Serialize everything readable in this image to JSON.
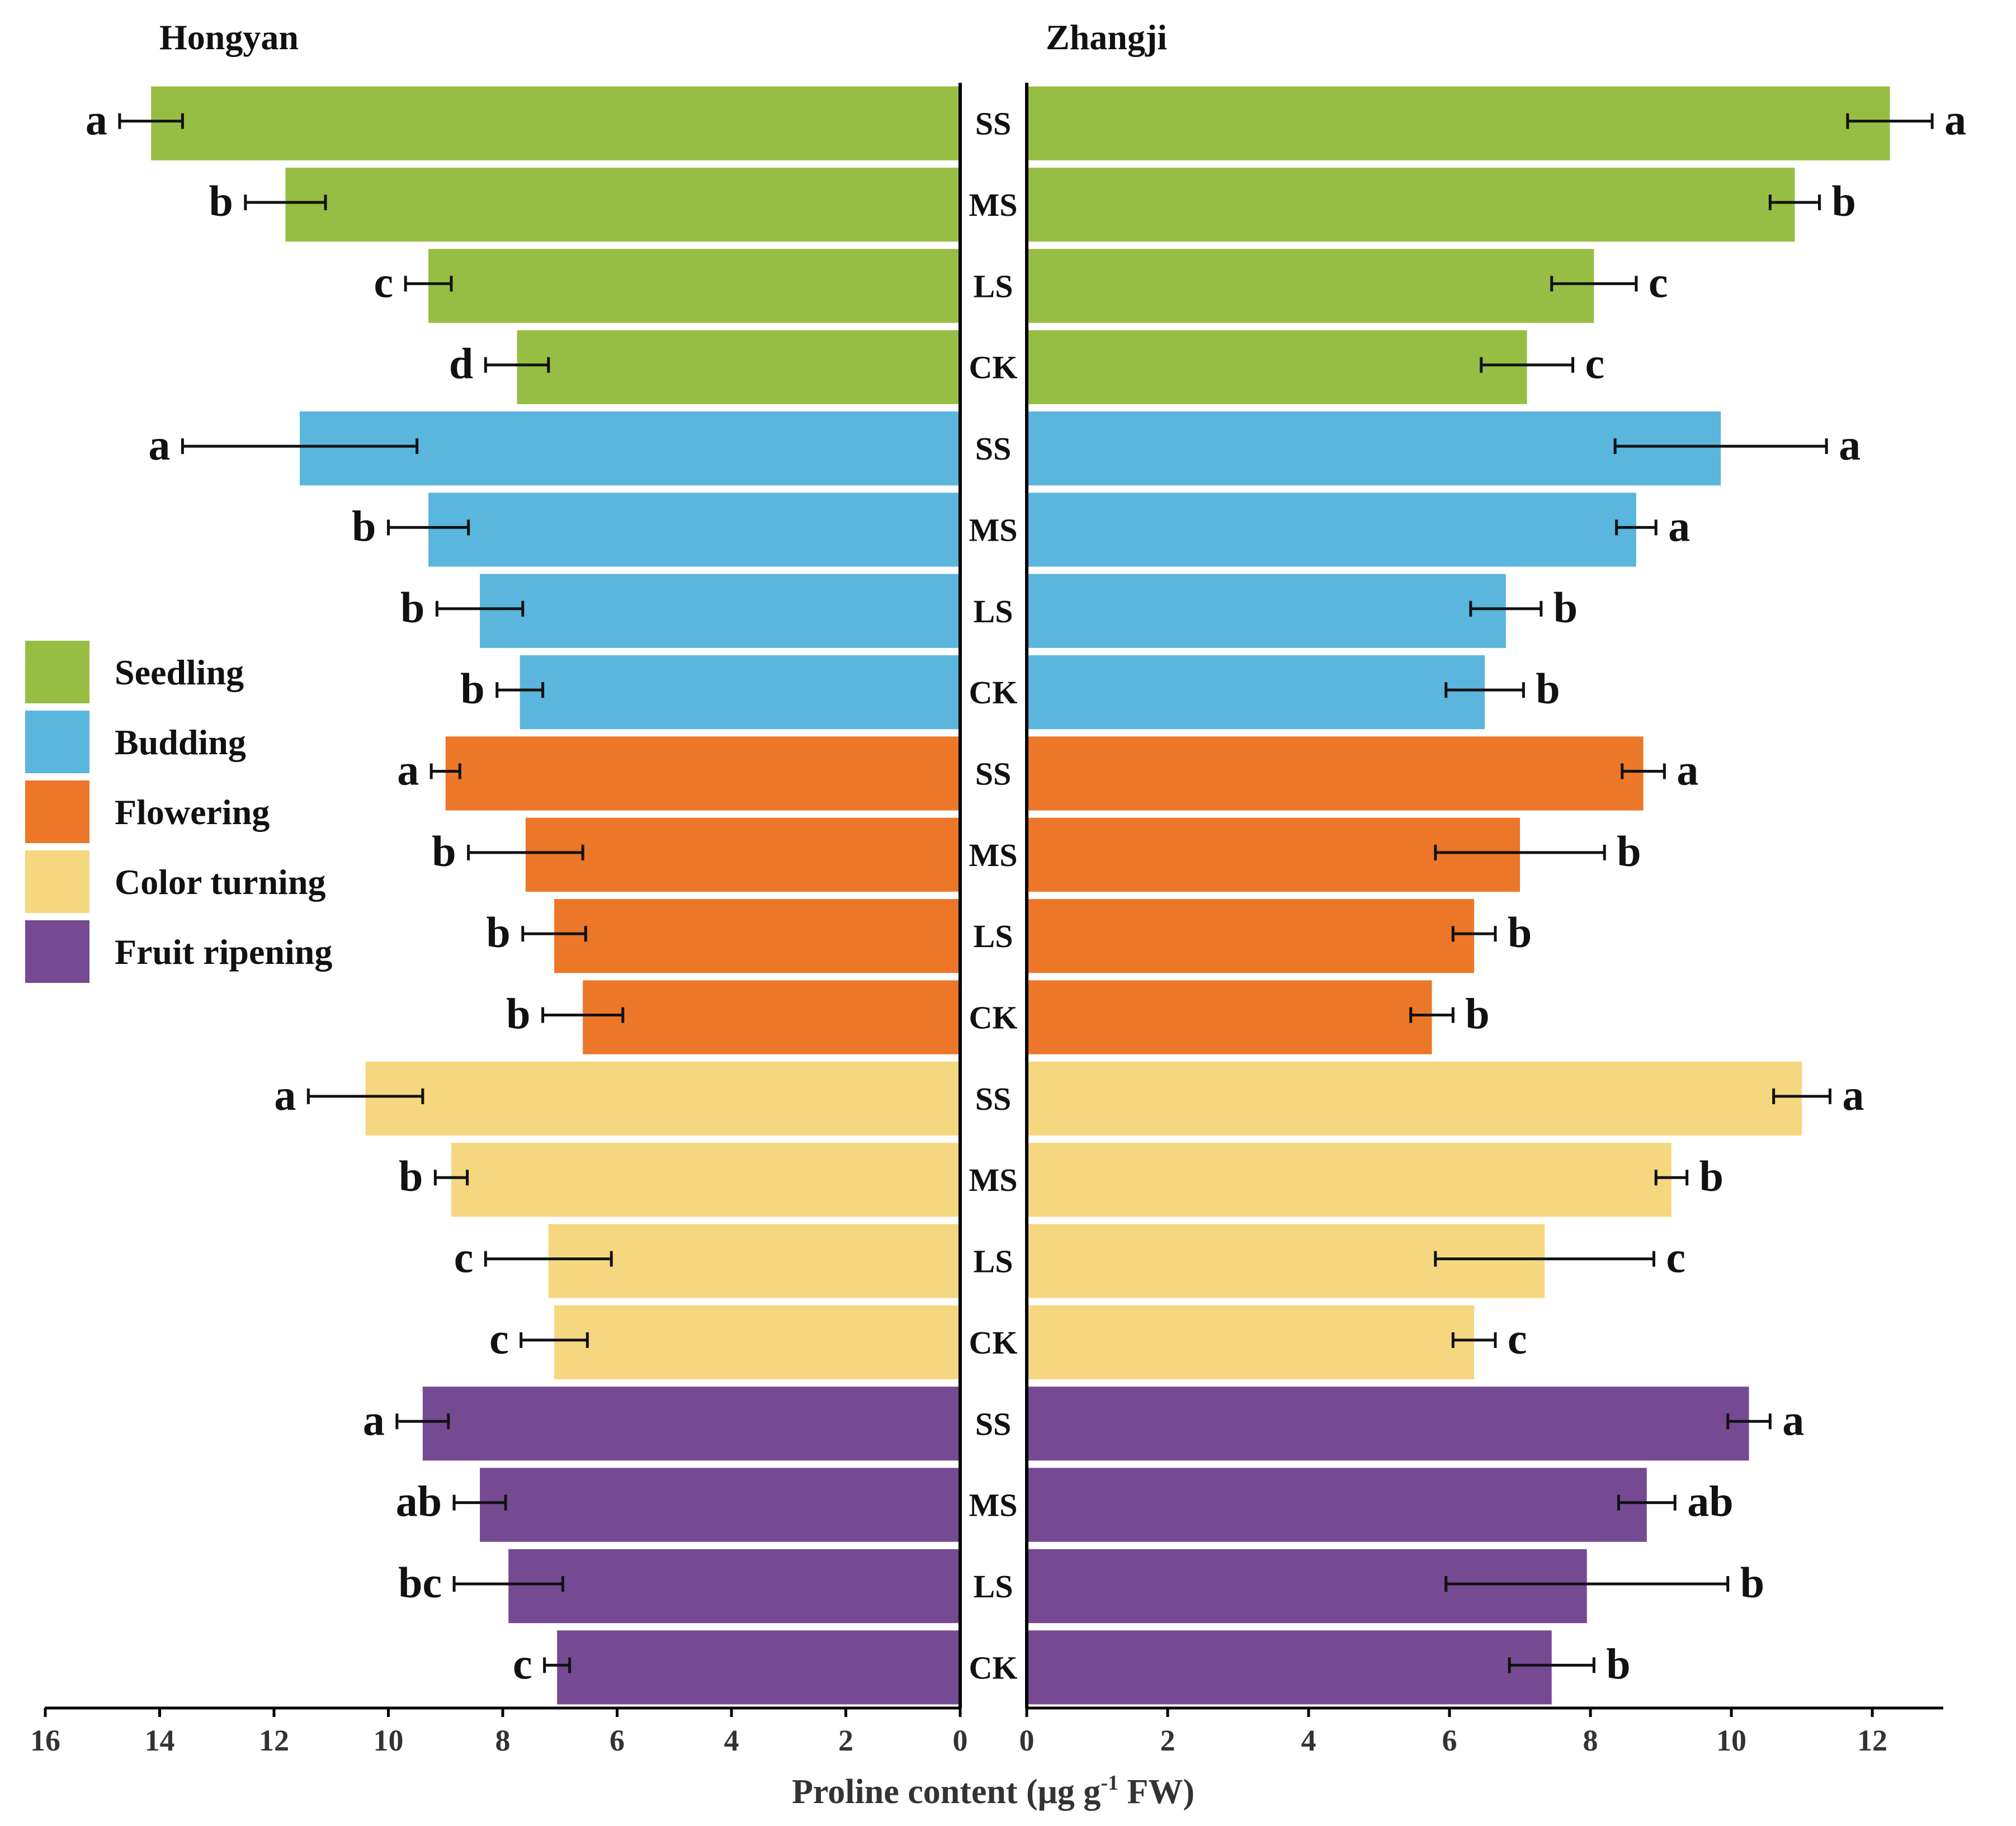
{
  "chart_data": {
    "type": "bar",
    "orientation": "horizontal",
    "xlabel_main": "Proline content (μg g",
    "xlabel_sup": "-1",
    "xlabel_end": " FW)",
    "categories": [
      "SS",
      "MS",
      "LS",
      "CK"
    ],
    "stages": [
      {
        "name": "Seedling",
        "color": "#97be44"
      },
      {
        "name": "Budding",
        "color": "#5ab6dd"
      },
      {
        "name": "Flowering",
        "color": "#ec7728"
      },
      {
        "name": "Color turning",
        "color": "#f5d77f"
      },
      {
        "name": "Fruit ripening",
        "color": "#764a92"
      }
    ],
    "panels": [
      {
        "title": "Hongyan",
        "xlim": [
          16,
          0
        ],
        "ticks": [
          "16",
          "14",
          "12",
          "10",
          "8",
          "6",
          "4",
          "2",
          "0"
        ],
        "values": [
          14.15,
          11.8,
          9.3,
          7.75,
          11.55,
          9.3,
          8.4,
          7.7,
          9.0,
          7.6,
          7.1,
          6.6,
          10.4,
          8.9,
          7.2,
          7.1,
          9.4,
          8.4,
          7.9,
          7.05
        ],
        "errors": [
          0.55,
          0.7,
          0.4,
          0.55,
          2.05,
          0.7,
          0.75,
          0.4,
          0.25,
          1.0,
          0.55,
          0.7,
          1.0,
          0.28,
          1.1,
          0.58,
          0.45,
          0.45,
          0.95,
          0.22
        ],
        "letters": [
          "a",
          "b",
          "c",
          "d",
          "a",
          "b",
          "b",
          "b",
          "a",
          "b",
          "b",
          "b",
          "a",
          "b",
          "c",
          "c",
          "a",
          "ab",
          "bc",
          "c"
        ]
      },
      {
        "title": "Zhangji",
        "xlim": [
          0,
          13
        ],
        "ticks": [
          "0",
          "2",
          "4",
          "6",
          "8",
          "10",
          "12"
        ],
        "values": [
          12.25,
          10.9,
          8.05,
          7.1,
          9.85,
          8.65,
          6.8,
          6.5,
          8.75,
          7.0,
          6.35,
          5.75,
          11.0,
          9.15,
          7.35,
          6.35,
          10.25,
          8.8,
          7.95,
          7.45
        ],
        "errors": [
          0.6,
          0.35,
          0.6,
          0.65,
          1.5,
          0.28,
          0.5,
          0.55,
          0.3,
          1.2,
          0.3,
          0.3,
          0.4,
          0.22,
          1.55,
          0.3,
          0.3,
          0.4,
          2.0,
          0.6
        ],
        "letters": [
          "a",
          "b",
          "c",
          "c",
          "a",
          "a",
          "b",
          "b",
          "a",
          "b",
          "b",
          "b",
          "a",
          "b",
          "c",
          "c",
          "a",
          "ab",
          "b",
          "b"
        ]
      }
    ]
  }
}
